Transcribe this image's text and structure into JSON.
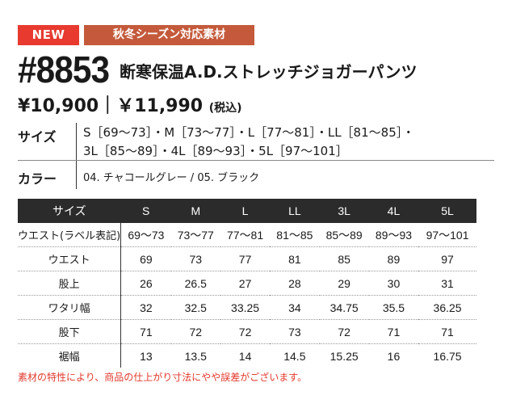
{
  "badges": {
    "new": "NEW",
    "season": "秋冬シーズン対応素材"
  },
  "product": {
    "model": "#8853",
    "name": "断寒保温A.D.ストレッチジョガーパンツ",
    "price": "¥10,900｜￥11,990",
    "price_note": "(税込)"
  },
  "spec": {
    "size_label": "サイズ",
    "size_line1": "S［69～73］・M［73～77］・L［77～81］・LL［81～85］・",
    "size_line2": "3L［85～89］・4L［89～93］・5L［97～101］",
    "color_label": "カラー",
    "color_value": "04. チャコールグレー / 05. ブラック"
  },
  "size_table": {
    "header_label": "サイズ",
    "columns": [
      "S",
      "M",
      "L",
      "LL",
      "3L",
      "4L",
      "5L"
    ],
    "rows": [
      {
        "label": "ウエスト(ラベル表記)",
        "values": [
          "69～73",
          "73～77",
          "77～81",
          "81～85",
          "85～89",
          "89～93",
          "97～101"
        ]
      },
      {
        "label": "ウエスト",
        "values": [
          "69",
          "73",
          "77",
          "81",
          "85",
          "89",
          "97"
        ]
      },
      {
        "label": "股上",
        "values": [
          "26",
          "26.5",
          "27",
          "28",
          "29",
          "30",
          "31"
        ]
      },
      {
        "label": "ワタリ幅",
        "values": [
          "32",
          "32.5",
          "33.25",
          "34",
          "34.75",
          "35.5",
          "36.25"
        ]
      },
      {
        "label": "股下",
        "values": [
          "71",
          "72",
          "72",
          "73",
          "72",
          "71",
          "71"
        ]
      },
      {
        "label": "裾幅",
        "values": [
          "13",
          "13.5",
          "14",
          "14.5",
          "15.25",
          "16",
          "16.75"
        ]
      }
    ]
  },
  "note": "素材の特性により、商品の仕上がり寸法にやや誤差がございます。",
  "colors": {
    "badge_new": "#e83a2f",
    "badge_season": "#c45a3b",
    "table_header": "#2b2b2b",
    "note_text": "#e23a2e"
  }
}
